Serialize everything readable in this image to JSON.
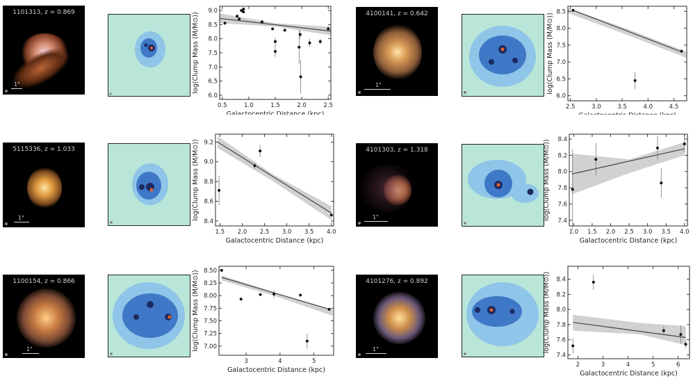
{
  "galaxies": [
    {
      "id": "g1",
      "label": "1101313, z = 0.869",
      "scale_label": "1\"",
      "palette": "warm-irregular"
    },
    {
      "id": "g2",
      "label": "4100141, z = 0.642",
      "scale_label": "1\"",
      "palette": "warm-spiral"
    },
    {
      "id": "g3",
      "label": "5115336, z = 1.033",
      "scale_label": "1\"",
      "palette": "warm-compact"
    },
    {
      "id": "g4",
      "label": "4101303, z = 1.318",
      "scale_label": "1\"",
      "palette": "warm-arc"
    },
    {
      "id": "g5",
      "label": "1100154, z = 0.866",
      "scale_label": "1\"",
      "palette": "warm-spiral"
    },
    {
      "id": "g6",
      "label": "4101276, z = 0.892",
      "scale_label": "1\"",
      "palette": "warm-bulge"
    }
  ],
  "chart_data": [
    {
      "type": "scatter",
      "title": "",
      "xlabel": "Galactocentric Distance (kpc)",
      "ylabel": "log(Clump Mass (M/M⊙))",
      "xlim": [
        0.45,
        2.55
      ],
      "ylim": [
        5.85,
        9.15
      ],
      "xticks": [
        0.5,
        1.0,
        1.5,
        2.0,
        2.5
      ],
      "xtick_labels": [
        "0.5",
        "1.0",
        "1.5",
        "2.0",
        "2.5"
      ],
      "yticks": [
        6.0,
        6.5,
        7.0,
        7.5,
        8.0,
        8.5,
        9.0
      ],
      "ytick_labels": [
        "6.0",
        "6.5",
        "7.0",
        "7.5",
        "8.0",
        "8.5",
        "9.0"
      ],
      "x": [
        0.55,
        0.78,
        0.82,
        0.86,
        0.9,
        0.9,
        1.25,
        1.45,
        1.5,
        1.5,
        1.68,
        1.95,
        1.97,
        1.98,
        2.15,
        2.35,
        2.5
      ],
      "y": [
        8.55,
        8.8,
        8.7,
        9.0,
        9.05,
        8.95,
        8.6,
        8.35,
        7.9,
        7.55,
        8.3,
        7.7,
        8.15,
        6.65,
        7.85,
        7.9,
        8.35
      ],
      "yerr": [
        0,
        0,
        0,
        0,
        0,
        0,
        0,
        0,
        0.15,
        0.2,
        0,
        0.6,
        0.15,
        0.6,
        0.15,
        0.1,
        0.1
      ],
      "fit": {
        "x": [
          0.45,
          2.55
        ],
        "y": [
          8.72,
          8.27
        ]
      },
      "band": {
        "x": [
          0.45,
          1.5,
          2.55
        ],
        "upper": [
          8.9,
          8.55,
          8.42
        ],
        "lower": [
          8.55,
          8.43,
          8.12
        ]
      }
    },
    {
      "type": "scatter",
      "title": "",
      "xlabel": "Galactocentric Distance (kpc)",
      "ylabel": "log(Clump Mass (M/M⊙))",
      "xlim": [
        2.45,
        4.75
      ],
      "ylim": [
        5.85,
        8.65
      ],
      "xticks": [
        2.5,
        3.0,
        3.5,
        4.0,
        4.5
      ],
      "xtick_labels": [
        "2.5",
        "3.0",
        "3.5",
        "4.0",
        "4.5"
      ],
      "yticks": [
        6.0,
        6.5,
        7.0,
        7.5,
        8.0,
        8.5
      ],
      "ytick_labels": [
        "6.0",
        "6.5",
        "7.0",
        "7.5",
        "8.0",
        "8.5"
      ],
      "x": [
        2.55,
        3.75,
        4.65
      ],
      "y": [
        8.53,
        6.45,
        7.32
      ],
      "yerr": [
        0,
        0.25,
        0
      ],
      "fit": {
        "x": [
          2.55,
          4.65
        ],
        "y": [
          8.53,
          7.3
        ]
      },
      "band": {
        "x": [
          2.45,
          3.6,
          4.75
        ],
        "upper": [
          8.6,
          7.98,
          7.3
        ],
        "lower": [
          8.45,
          7.8,
          7.12
        ]
      }
    },
    {
      "type": "scatter",
      "title": "",
      "xlabel": "Galactocentric Distance (kpc)",
      "ylabel": "log(Clump Mass (M/M⊙))",
      "xlim": [
        1.4,
        4.05
      ],
      "ylim": [
        8.35,
        9.28
      ],
      "xticks": [
        1.5,
        2.0,
        2.5,
        3.0,
        3.5,
        4.0
      ],
      "xtick_labels": [
        "1.5",
        "2.0",
        "2.5",
        "3.0",
        "3.5",
        "4.0"
      ],
      "yticks": [
        8.4,
        8.6,
        8.8,
        9.0,
        9.2
      ],
      "ytick_labels": [
        "8.4",
        "8.6",
        "8.8",
        "9.0",
        "9.2"
      ],
      "x": [
        1.48,
        2.28,
        2.4,
        4.0
      ],
      "y": [
        8.71,
        8.96,
        9.11,
        8.46
      ],
      "yerr": [
        0.15,
        0.03,
        0.06,
        0
      ],
      "fit": {
        "x": [
          1.45,
          4.0
        ],
        "y": [
          9.2,
          8.48
        ]
      },
      "band": {
        "x": [
          1.45,
          2.7,
          4.0
        ],
        "upper": [
          9.26,
          8.87,
          8.55
        ],
        "lower": [
          9.14,
          8.8,
          8.41
        ]
      }
    },
    {
      "type": "scatter",
      "title": "",
      "xlabel": "Galactocentric Distance (kpc)",
      "ylabel": "log(Clump Mass (M/M⊙))",
      "xlim": [
        0.88,
        4.08
      ],
      "ylim": [
        7.33,
        8.46
      ],
      "xticks": [
        1.0,
        1.5,
        2.0,
        2.5,
        3.0,
        3.5,
        4.0
      ],
      "xtick_labels": [
        "1.0",
        "1.5",
        "2.0",
        "2.5",
        "3.0",
        "3.5",
        "4.0"
      ],
      "yticks": [
        7.4,
        7.6,
        7.8,
        8.0,
        8.2,
        8.4
      ],
      "ytick_labels": [
        "7.4",
        "7.6",
        "7.8",
        "8.0",
        "8.2",
        "8.4"
      ],
      "x": [
        0.97,
        1.6,
        3.27,
        3.37,
        4.0
      ],
      "y": [
        7.78,
        8.15,
        8.29,
        7.86,
        8.34
      ],
      "yerr": [
        0.5,
        0.2,
        0.15,
        0.18,
        0.1
      ],
      "fit": {
        "x": [
          0.95,
          4.0
        ],
        "y": [
          7.97,
          8.28
        ]
      },
      "band": {
        "x": [
          0.95,
          2.5,
          4.0
        ],
        "upper": [
          8.22,
          8.15,
          8.36
        ],
        "lower": [
          7.72,
          7.98,
          8.2
        ]
      }
    },
    {
      "type": "scatter",
      "title": "",
      "xlabel": "Galactocentric Distance (kpc)",
      "ylabel": "log(Clump Mass (M/M⊙))",
      "xlim": [
        2.2,
        5.58
      ],
      "ylim": [
        6.82,
        8.58
      ],
      "xticks": [
        3,
        4,
        5
      ],
      "xtick_labels": [
        "3",
        "4",
        "5"
      ],
      "yticks": [
        7.0,
        7.25,
        7.5,
        7.75,
        8.0,
        8.25,
        8.5
      ],
      "ytick_labels": [
        "7.00",
        "7.25",
        "7.50",
        "7.75",
        "8.00",
        "8.25",
        "8.50"
      ],
      "x": [
        2.28,
        2.85,
        3.42,
        3.82,
        4.6,
        4.8,
        5.45
      ],
      "y": [
        8.5,
        7.93,
        8.02,
        8.03,
        8.01,
        7.1,
        7.73
      ],
      "yerr": [
        0,
        0,
        0,
        0.08,
        0,
        0.15,
        0
      ],
      "fit": {
        "x": [
          2.28,
          5.45
        ],
        "y": [
          8.36,
          7.73
        ]
      },
      "band": {
        "x": [
          2.28,
          3.9,
          5.55
        ],
        "upper": [
          8.4,
          8.05,
          7.72
        ],
        "lower": [
          8.3,
          7.98,
          7.6
        ]
      }
    },
    {
      "type": "scatter",
      "title": "",
      "xlabel": "Galactocentric Distance (kpc)",
      "ylabel": "log(Clump Mass (M/M⊙))",
      "xlim": [
        1.6,
        6.45
      ],
      "ylim": [
        7.35,
        8.57
      ],
      "xticks": [
        2,
        3,
        4,
        5,
        6
      ],
      "xtick_labels": [
        "2",
        "3",
        "4",
        "5",
        "6"
      ],
      "yticks": [
        7.4,
        7.6,
        7.8,
        8.0,
        8.2,
        8.4
      ],
      "ytick_labels": [
        "7.4",
        "7.6",
        "7.8",
        "8.0",
        "8.2",
        "8.4"
      ],
      "x": [
        1.8,
        2.62,
        5.42,
        6.1,
        6.3
      ],
      "y": [
        7.52,
        8.36,
        7.72,
        7.67,
        7.54
      ],
      "yerr": [
        0.1,
        0.1,
        0.06,
        0.12,
        0.05
      ],
      "fit": {
        "x": [
          1.8,
          6.3
        ],
        "y": [
          7.83,
          7.63
        ]
      },
      "band": {
        "x": [
          1.8,
          4.5,
          6.3
        ],
        "upper": [
          7.93,
          7.82,
          7.78
        ],
        "lower": [
          7.72,
          7.67,
          7.53
        ]
      }
    }
  ]
}
